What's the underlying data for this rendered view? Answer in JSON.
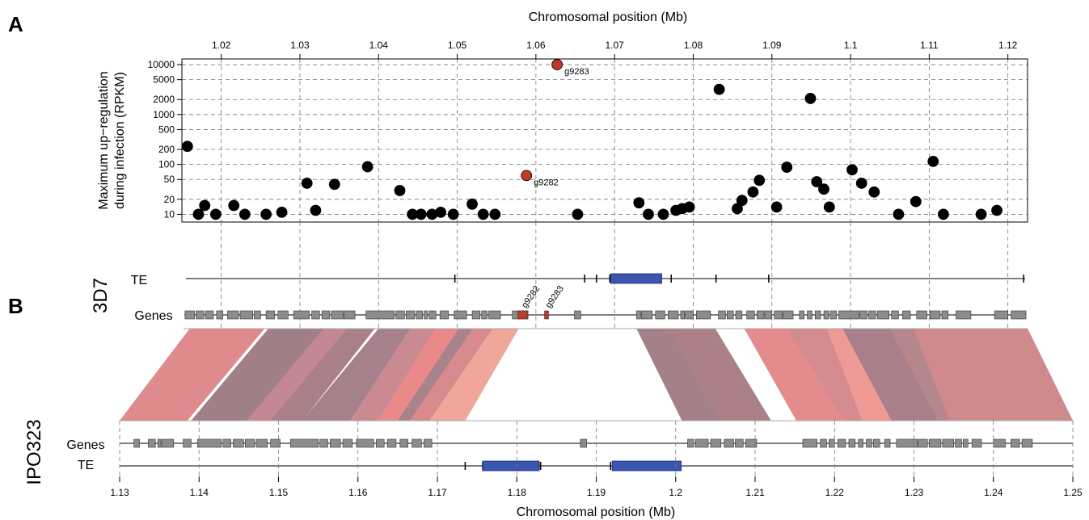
{
  "panel_labels": {
    "a": "A",
    "b": "B"
  },
  "chart_data": [
    {
      "type": "scatter",
      "panel": "A",
      "xlabel": "Chromosomal position (Mb)",
      "ylabel_line1": "Maximum up−regulation",
      "ylabel_line2": "during infection (RPKM)",
      "xlim": [
        1.015,
        1.1225
      ],
      "ylim": [
        7,
        13000
      ],
      "yscale": "log",
      "grid": true,
      "x_ticks": [
        1.02,
        1.03,
        1.04,
        1.05,
        1.06,
        1.07,
        1.08,
        1.09,
        1.1,
        1.11,
        1.12
      ],
      "x_tick_labels": [
        "1.02",
        "1.03",
        "1.04",
        "1.05",
        "1.06",
        "1.07",
        "1.08",
        "1.09",
        "1.1",
        "1.11",
        "1.12"
      ],
      "y_ticks": [
        10,
        20,
        50,
        100,
        200,
        500,
        1000,
        2000,
        5000,
        10000
      ],
      "y_tick_labels": [
        "10",
        "20",
        "50",
        "100",
        "200",
        "500",
        "1000",
        "2000",
        "5000",
        "10000"
      ],
      "colors": {
        "default": "#000000",
        "highlight": "#c0392b"
      },
      "points": [
        {
          "x": 1.0157,
          "y": 230
        },
        {
          "x": 1.0171,
          "y": 10
        },
        {
          "x": 1.0179,
          "y": 15
        },
        {
          "x": 1.0193,
          "y": 10
        },
        {
          "x": 1.0216,
          "y": 15
        },
        {
          "x": 1.023,
          "y": 10
        },
        {
          "x": 1.0257,
          "y": 10
        },
        {
          "x": 1.0277,
          "y": 11
        },
        {
          "x": 1.0309,
          "y": 42
        },
        {
          "x": 1.032,
          "y": 12
        },
        {
          "x": 1.0344,
          "y": 40
        },
        {
          "x": 1.0386,
          "y": 90
        },
        {
          "x": 1.0427,
          "y": 30
        },
        {
          "x": 1.0443,
          "y": 10
        },
        {
          "x": 1.0454,
          "y": 10
        },
        {
          "x": 1.0468,
          "y": 10
        },
        {
          "x": 1.0479,
          "y": 11
        },
        {
          "x": 1.0495,
          "y": 10
        },
        {
          "x": 1.0519,
          "y": 16
        },
        {
          "x": 1.0533,
          "y": 10
        },
        {
          "x": 1.0548,
          "y": 10
        },
        {
          "x": 1.0588,
          "y": 60,
          "label": "g9282",
          "highlight": true
        },
        {
          "x": 1.0627,
          "y": 10000,
          "label": "g9283",
          "highlight": true
        },
        {
          "x": 1.0653,
          "y": 10
        },
        {
          "x": 1.0731,
          "y": 17
        },
        {
          "x": 1.0743,
          "y": 10
        },
        {
          "x": 1.0762,
          "y": 10
        },
        {
          "x": 1.0778,
          "y": 12
        },
        {
          "x": 1.0786,
          "y": 13
        },
        {
          "x": 1.0795,
          "y": 14
        },
        {
          "x": 1.0833,
          "y": 3200
        },
        {
          "x": 1.0856,
          "y": 13
        },
        {
          "x": 1.0862,
          "y": 19
        },
        {
          "x": 1.0876,
          "y": 28
        },
        {
          "x": 1.0884,
          "y": 48
        },
        {
          "x": 1.0906,
          "y": 14
        },
        {
          "x": 1.0919,
          "y": 88
        },
        {
          "x": 1.0949,
          "y": 2100
        },
        {
          "x": 1.0957,
          "y": 45
        },
        {
          "x": 1.0966,
          "y": 32
        },
        {
          "x": 1.0973,
          "y": 14
        },
        {
          "x": 1.1002,
          "y": 78
        },
        {
          "x": 1.1014,
          "y": 42
        },
        {
          "x": 1.103,
          "y": 28
        },
        {
          "x": 1.1061,
          "y": 10
        },
        {
          "x": 1.1083,
          "y": 18
        },
        {
          "x": 1.1105,
          "y": 115
        },
        {
          "x": 1.1118,
          "y": 10
        },
        {
          "x": 1.1166,
          "y": 10
        },
        {
          "x": 1.1186,
          "y": 12
        }
      ]
    },
    {
      "type": "genome_synteny",
      "panel": "B",
      "xlabel": "Chromosomal position (Mb)",
      "top_genome": "3D7",
      "bottom_genome": "IPO323",
      "track_labels": {
        "te": "TE",
        "genes": "Genes"
      },
      "top_xlim": [
        1.015,
        1.1225
      ],
      "bottom_xlim": [
        1.13,
        1.25
      ],
      "bottom_x_ticks": [
        1.13,
        1.14,
        1.15,
        1.16,
        1.17,
        1.18,
        1.19,
        1.2,
        1.21,
        1.22,
        1.23,
        1.24,
        1.25
      ],
      "bottom_x_tick_labels": [
        "1.13",
        "1.14",
        "1.15",
        "1.16",
        "1.17",
        "1.18",
        "1.19",
        "1.2",
        "1.21",
        "1.22",
        "1.23",
        "1.24",
        "1.25"
      ],
      "colors": {
        "gene": "#8c8c8c",
        "gene_highlight": "#c0392b",
        "te": "#3b56b0"
      },
      "top_te": {
        "blocks": [
          [
            1.0695,
            1.076
          ]
        ],
        "ticks": [
          1.0497,
          1.0662,
          1.0677,
          1.0694,
          1.0772,
          1.0829,
          1.0896,
          1.122
        ]
      },
      "top_genes": [
        [
          1.0154,
          1.0166
        ],
        [
          1.0168,
          1.0178
        ],
        [
          1.018,
          1.019
        ],
        [
          1.0194,
          1.0202
        ],
        [
          1.0208,
          1.0222
        ],
        [
          1.0224,
          1.024
        ],
        [
          1.0242,
          1.025
        ],
        [
          1.0257,
          1.0268
        ],
        [
          1.0272,
          1.0285
        ],
        [
          1.0292,
          1.0312
        ],
        [
          1.0315,
          1.0325
        ],
        [
          1.0328,
          1.0338
        ],
        [
          1.034,
          1.0355
        ],
        [
          1.0356,
          1.037
        ],
        [
          1.0384,
          1.042
        ],
        [
          1.0422,
          1.0433
        ],
        [
          1.0435,
          1.0446
        ],
        [
          1.0448,
          1.0456
        ],
        [
          1.0458,
          1.0462
        ],
        [
          1.0464,
          1.0473
        ],
        [
          1.0478,
          1.0489
        ],
        [
          1.0496,
          1.0512
        ],
        [
          1.0519,
          1.0529
        ],
        [
          1.0531,
          1.0538
        ],
        [
          1.054,
          1.0555
        ],
        [
          1.057,
          1.059
        ],
        [
          1.0649,
          1.0657
        ],
        [
          1.0728,
          1.0733
        ],
        [
          1.0734,
          1.0748
        ],
        [
          1.0752,
          1.0764
        ],
        [
          1.0768,
          1.0781
        ],
        [
          1.0784,
          1.0789
        ],
        [
          1.079,
          1.08
        ],
        [
          1.0804,
          1.0822
        ],
        [
          1.0832,
          1.0841
        ],
        [
          1.0843,
          1.0851
        ],
        [
          1.0854,
          1.0862
        ],
        [
          1.0868,
          1.0878
        ],
        [
          1.0881,
          1.089
        ],
        [
          1.0891,
          1.09
        ],
        [
          1.0903,
          1.0913
        ],
        [
          1.0914,
          1.0927
        ],
        [
          1.0935,
          1.0941
        ],
        [
          1.0945,
          1.0951
        ],
        [
          1.0955,
          1.0962
        ],
        [
          1.0966,
          1.0972
        ],
        [
          1.0974,
          1.0982
        ],
        [
          1.0985,
          1.1011
        ],
        [
          1.1012,
          1.1021
        ],
        [
          1.1023,
          1.1032
        ],
        [
          1.1034,
          1.1049
        ],
        [
          1.1052,
          1.1061
        ],
        [
          1.1066,
          1.1076
        ],
        [
          1.1084,
          1.1097
        ],
        [
          1.1101,
          1.1114
        ],
        [
          1.1116,
          1.1124
        ],
        [
          1.1134,
          1.1153
        ],
        [
          1.1183,
          1.12
        ],
        [
          1.1204,
          1.1223
        ]
      ],
      "top_highlight_genes": [
        {
          "range": [
            1.0577,
            1.0589
          ],
          "label": "g9282"
        },
        {
          "range": [
            1.0611,
            1.0616
          ],
          "label": "g9283"
        }
      ],
      "bottom_te": {
        "blocks": [
          [
            1.1757,
            1.1828
          ],
          [
            1.192,
            1.2007
          ]
        ],
        "ticks": [
          1.1735,
          1.1757,
          1.1828,
          1.183,
          1.1918
        ]
      },
      "bottom_genes": [
        [
          1.1318,
          1.1325
        ],
        [
          1.1336,
          1.1345
        ],
        [
          1.1348,
          1.1352
        ],
        [
          1.1353,
          1.1368
        ],
        [
          1.138,
          1.139
        ],
        [
          1.1398,
          1.1428
        ],
        [
          1.143,
          1.144
        ],
        [
          1.1443,
          1.1456
        ],
        [
          1.1458,
          1.147
        ],
        [
          1.1472,
          1.1486
        ],
        [
          1.149,
          1.1502
        ],
        [
          1.1515,
          1.155
        ],
        [
          1.1552,
          1.1562
        ],
        [
          1.1565,
          1.1578
        ],
        [
          1.1581,
          1.1593
        ],
        [
          1.1598,
          1.162
        ],
        [
          1.1623,
          1.1633
        ],
        [
          1.1637,
          1.1648
        ],
        [
          1.1653,
          1.1663
        ],
        [
          1.1668,
          1.168
        ],
        [
          1.1683,
          1.1693
        ],
        [
          1.188,
          1.1888
        ],
        [
          1.2015,
          1.2023
        ],
        [
          1.2025,
          1.2041
        ],
        [
          1.2044,
          1.2057
        ],
        [
          1.2061,
          1.2073
        ],
        [
          1.2075,
          1.2085
        ],
        [
          1.2088,
          1.2102
        ],
        [
          1.216,
          1.2178
        ],
        [
          1.2182,
          1.219
        ],
        [
          1.2193,
          1.22
        ],
        [
          1.2204,
          1.2214
        ],
        [
          1.2218,
          1.2226
        ],
        [
          1.223,
          1.2236
        ],
        [
          1.224,
          1.2247
        ],
        [
          1.2249,
          1.2257
        ],
        [
          1.2263,
          1.227
        ],
        [
          1.2278,
          1.2304
        ],
        [
          1.2305,
          1.2317
        ],
        [
          1.2319,
          1.2334
        ],
        [
          1.2336,
          1.235
        ],
        [
          1.2352,
          1.236
        ],
        [
          1.2362,
          1.2368
        ],
        [
          1.2373,
          1.2385
        ],
        [
          1.24,
          1.2415
        ],
        [
          1.2422,
          1.2433
        ],
        [
          1.2436,
          1.2449
        ]
      ],
      "synteny_blocks": [
        {
          "top": [
            1.016,
            1.0255
          ],
          "bottom": [
            1.13,
            1.1385
          ],
          "color": "#df8a8c"
        },
        {
          "top": [
            1.026,
            1.0358
          ],
          "bottom": [
            1.139,
            1.148
          ],
          "color": "#a07f86"
        },
        {
          "top": [
            1.033,
            1.0378
          ],
          "bottom": [
            1.146,
            1.15
          ],
          "color": "#c38891"
        },
        {
          "top": [
            1.036,
            1.0395
          ],
          "bottom": [
            1.149,
            1.153
          ],
          "color": "#a98088"
        },
        {
          "top": [
            1.04,
            1.0472
          ],
          "bottom": [
            1.153,
            1.16
          ],
          "color": "#a6808a"
        },
        {
          "top": [
            1.044,
            1.049
          ],
          "bottom": [
            1.159,
            1.1632
          ],
          "color": "#c98a92"
        },
        {
          "top": [
            1.0472,
            1.0502
          ],
          "bottom": [
            1.1625,
            1.166
          ],
          "color": "#e9898a"
        },
        {
          "top": [
            1.0502,
            1.054
          ],
          "bottom": [
            1.165,
            1.169
          ],
          "color": "#a9838b"
        },
        {
          "top": [
            1.052,
            1.0553
          ],
          "bottom": [
            1.1665,
            1.17
          ],
          "color": "#d98a8e"
        },
        {
          "top": [
            1.0545,
            1.0578
          ],
          "bottom": [
            1.169,
            1.1735
          ],
          "color": "#f0a69a"
        },
        {
          "top": [
            1.0728,
            1.0798
          ],
          "bottom": [
            1.2008,
            1.2082
          ],
          "color": "#a48088"
        },
        {
          "top": [
            1.0768,
            1.0828
          ],
          "bottom": [
            1.2055,
            1.212
          ],
          "color": "#ab8087"
        },
        {
          "top": [
            1.0865,
            1.0945
          ],
          "bottom": [
            1.2152,
            1.223
          ],
          "color": "#e38b8d"
        },
        {
          "top": [
            1.092,
            1.0996
          ],
          "bottom": [
            1.2212,
            1.229
          ],
          "color": "#d48b8f"
        },
        {
          "top": [
            1.097,
            1.1015
          ],
          "bottom": [
            1.2235,
            1.2275
          ],
          "color": "#f09a95"
        },
        {
          "top": [
            1.099,
            1.1052
          ],
          "bottom": [
            1.2272,
            1.2335
          ],
          "color": "#a9808a"
        },
        {
          "top": [
            1.105,
            1.1085
          ],
          "bottom": [
            1.233,
            1.2362
          ],
          "color": "#b5868c"
        },
        {
          "top": [
            1.108,
            1.1225
          ],
          "bottom": [
            1.2345,
            1.25
          ],
          "color": "#cf8a8d"
        }
      ]
    }
  ]
}
